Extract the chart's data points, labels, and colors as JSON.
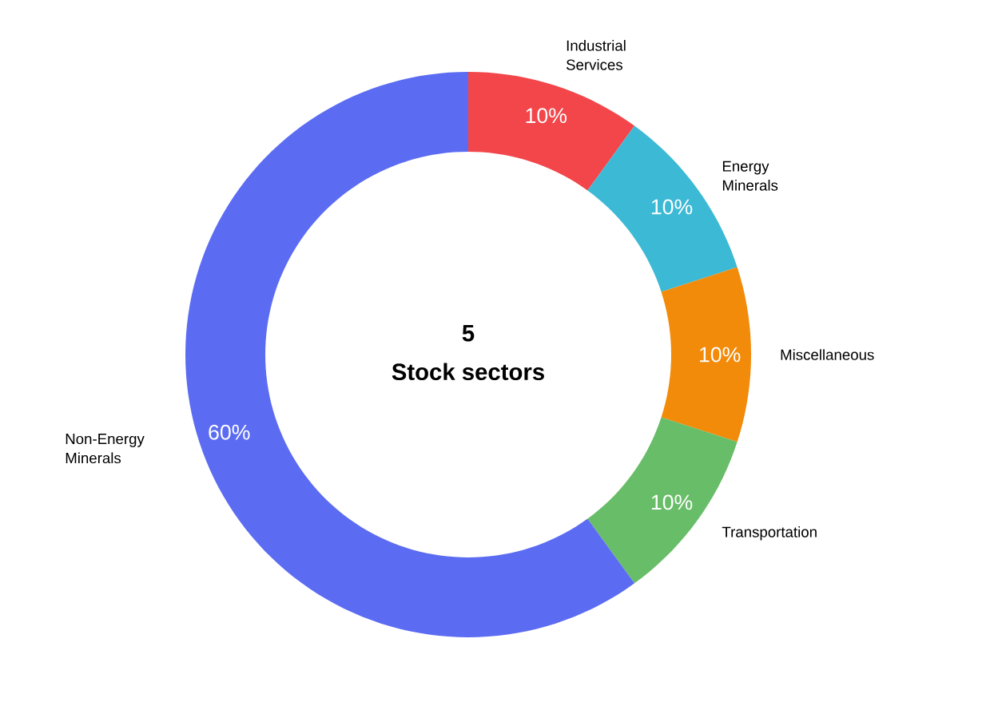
{
  "chart_data": {
    "type": "donut",
    "title": "5",
    "subtitle": "Stock sectors",
    "categories": [
      "Industrial Services",
      "Energy Minerals",
      "Miscellaneous",
      "Transportation",
      "Non-Energy Minerals"
    ],
    "values": [
      10,
      10,
      10,
      10,
      60
    ],
    "value_labels": [
      "10%",
      "10%",
      "10%",
      "10%",
      "60%"
    ],
    "colors": [
      "#f2464a",
      "#3cb9d5",
      "#f28a0a",
      "#68bd68",
      "#5b6cf2"
    ]
  }
}
